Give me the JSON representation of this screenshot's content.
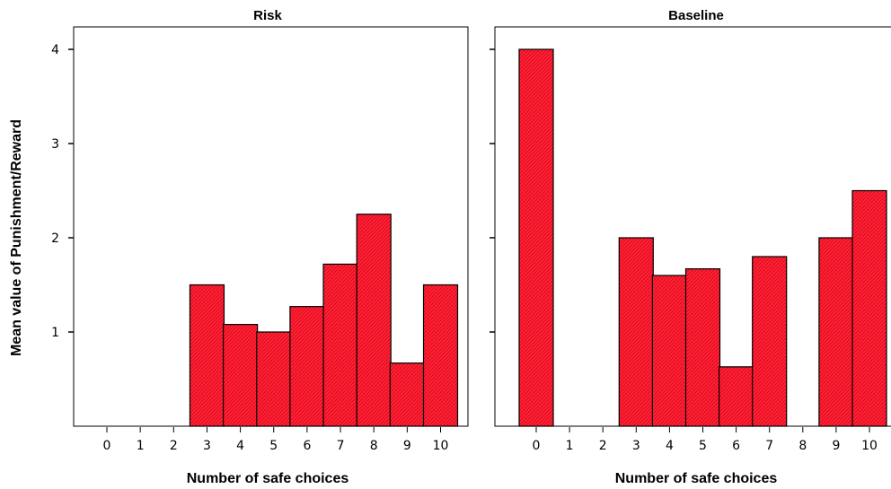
{
  "chart_data": {
    "type": "bar",
    "ylabel": "Mean value of Punishment/Reward",
    "xlabel": "Number of safe choices",
    "yticks": [
      1,
      2,
      3,
      4
    ],
    "ylim": [
      0,
      4.25
    ],
    "categories": [
      "0",
      "1",
      "2",
      "3",
      "4",
      "5",
      "6",
      "7",
      "8",
      "9",
      "10"
    ],
    "bar_color": "#ff2233",
    "panels": [
      {
        "title": "Risk",
        "values": [
          null,
          null,
          null,
          1.5,
          1.08,
          1.0,
          1.27,
          1.72,
          2.25,
          0.67,
          1.5
        ]
      },
      {
        "title": "Baseline",
        "values": [
          4.0,
          null,
          null,
          2.0,
          1.6,
          1.67,
          0.63,
          1.8,
          null,
          2.0,
          2.5
        ]
      }
    ]
  }
}
